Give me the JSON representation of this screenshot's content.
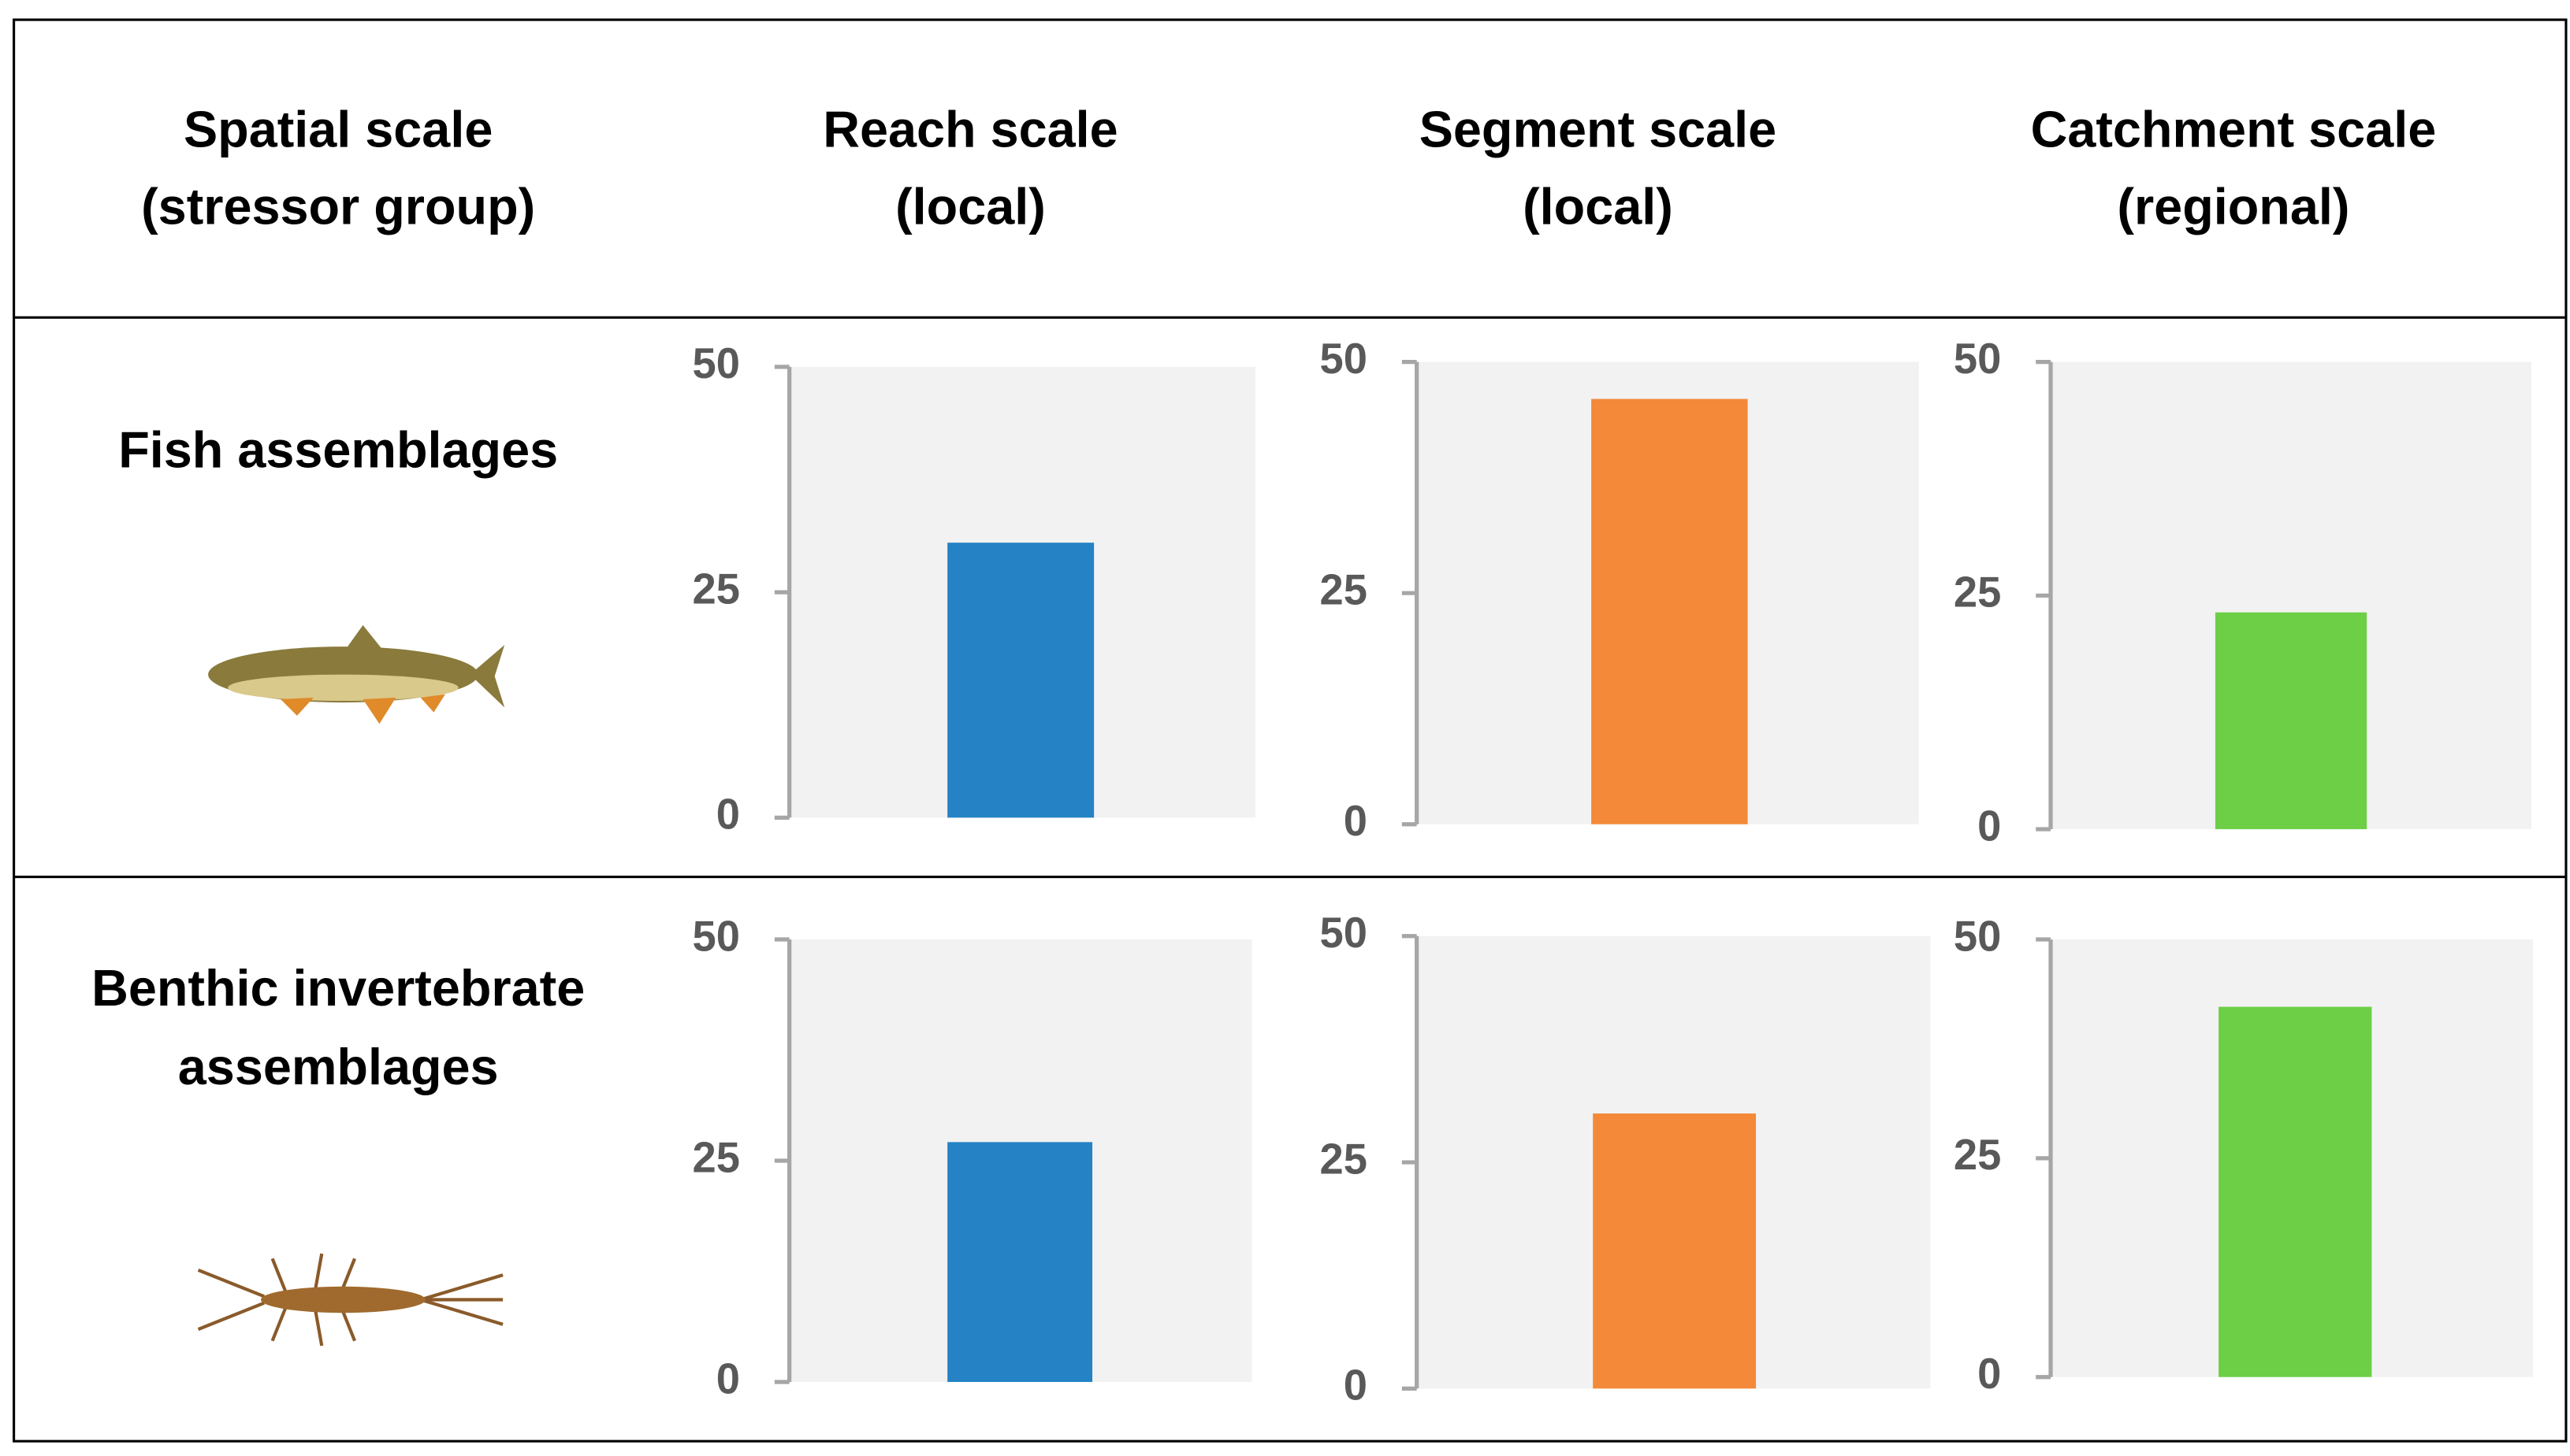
{
  "columns": [
    [
      "Spatial scale",
      "(stressor group)"
    ],
    [
      "Reach scale",
      "(local)"
    ],
    [
      "Segment scale",
      "(local)"
    ],
    [
      "Catchment scale",
      "(regional)"
    ]
  ],
  "rows": [
    [
      "Fish assemblages"
    ],
    [
      "Benthic invertebrate",
      "assemblages"
    ]
  ],
  "chart_data": [
    {
      "type": "bar",
      "categories": [
        null
      ],
      "values": [
        30.5
      ],
      "color": "#2482c5",
      "ylim": [
        0,
        50
      ],
      "yticks": [
        0,
        25,
        50
      ]
    },
    {
      "type": "bar",
      "categories": [
        null
      ],
      "values": [
        46
      ],
      "color": "#f38939",
      "ylim": [
        0,
        50
      ],
      "yticks": [
        0,
        25,
        50
      ]
    },
    {
      "type": "bar",
      "categories": [
        null
      ],
      "values": [
        23.2
      ],
      "color": "#6ccf45",
      "ylim": [
        0,
        50
      ],
      "yticks": [
        0,
        25,
        50
      ]
    },
    {
      "type": "bar",
      "categories": [
        null
      ],
      "values": [
        27.1
      ],
      "color": "#2482c5",
      "ylim": [
        0,
        50
      ],
      "yticks": [
        0,
        25,
        50
      ]
    },
    {
      "type": "bar",
      "categories": [
        null
      ],
      "values": [
        30.4
      ],
      "color": "#f38939",
      "ylim": [
        0,
        50
      ],
      "yticks": [
        0,
        25,
        50
      ]
    },
    {
      "type": "bar",
      "categories": [
        null
      ],
      "values": [
        42.3
      ],
      "color": "#6ccf45",
      "ylim": [
        0,
        50
      ],
      "yticks": [
        0,
        25,
        50
      ]
    }
  ]
}
